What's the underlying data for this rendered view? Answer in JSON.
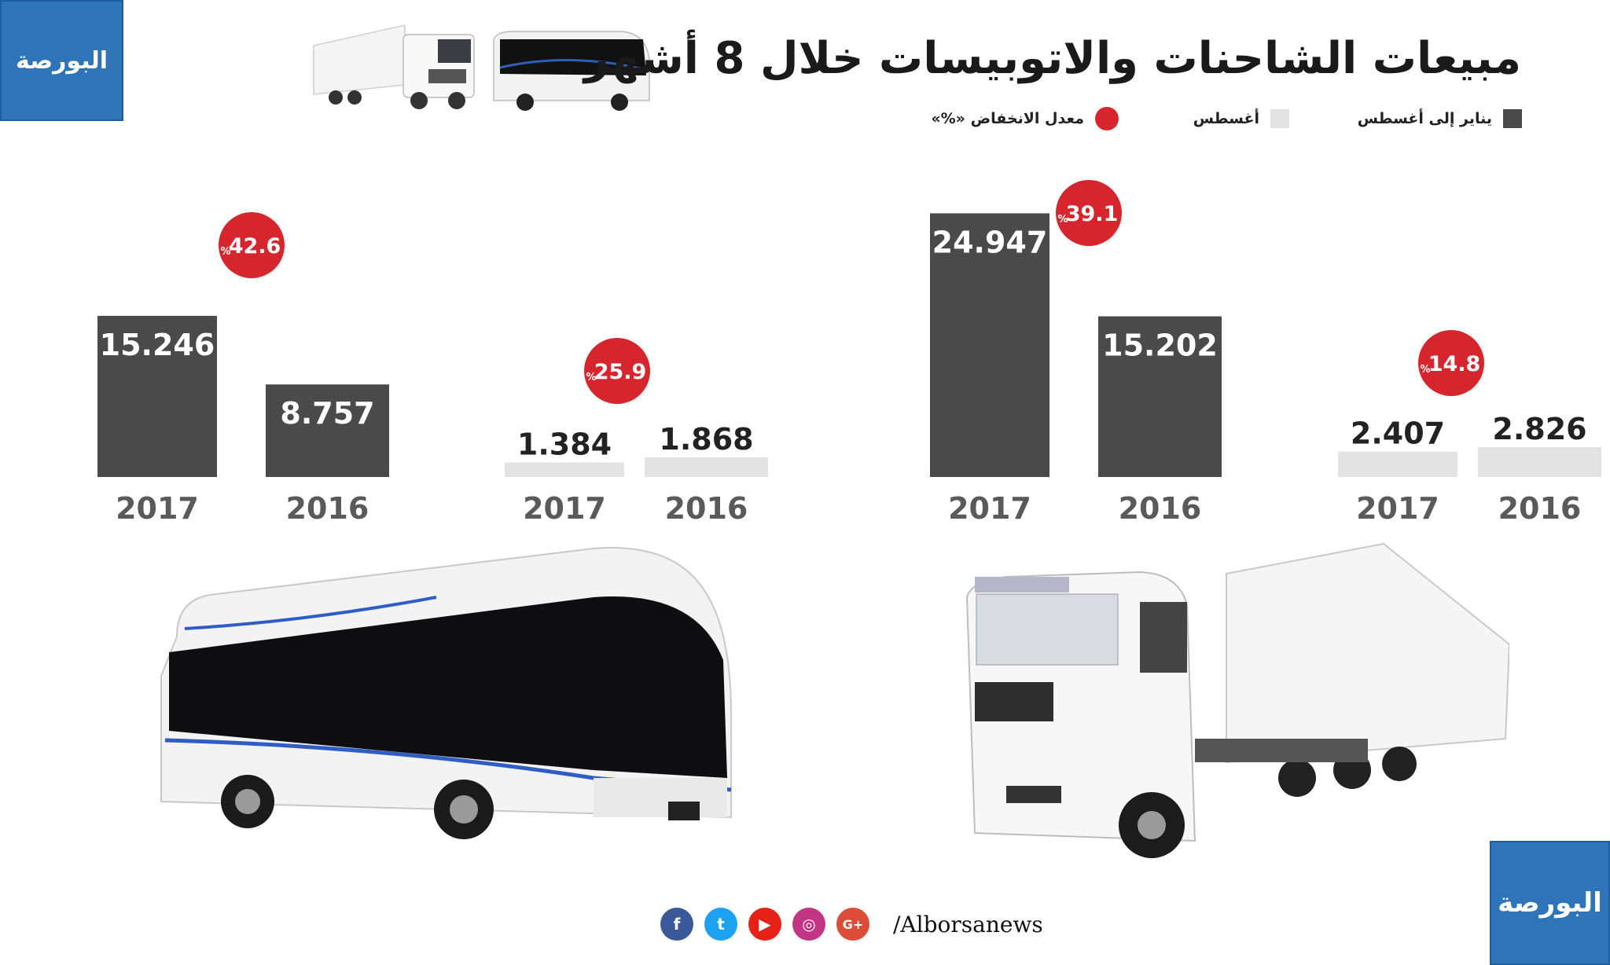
{
  "header": {
    "title": "مبيعات الشاحنات والاتوبيسات خلال 8 أشهر",
    "logo_text": "البورصة"
  },
  "legend": [
    {
      "label": "يناير إلى أغسطس",
      "color": "#4a4a4a",
      "shape": "square"
    },
    {
      "label": "أغسطس",
      "color": "#e3e3e3",
      "shape": "square"
    },
    {
      "label": "معدل الانخفاض «%»",
      "color": "#d7252e",
      "shape": "circle"
    }
  ],
  "colors": {
    "dark_bar": "#4a4a4a",
    "light_bar": "#e3e3e3",
    "badge": "#d7252e",
    "year_text": "#5a5a5a",
    "brand": "#2f74b8"
  },
  "chart_data": [
    {
      "type": "bar",
      "subject": "bus",
      "groups": [
        {
          "series": "يناير إلى أغسطس",
          "categories": [
            "2017",
            "2016"
          ],
          "values": [
            15.246,
            8.757
          ],
          "labels": [
            "15.246",
            "8.757"
          ],
          "change_badge": "42.6",
          "percent_sign": "%"
        },
        {
          "series": "أغسطس",
          "categories": [
            "2017",
            "2016"
          ],
          "values": [
            1.384,
            1.868
          ],
          "labels": [
            "1.384",
            "1.868"
          ],
          "change_badge": "25.9",
          "percent_sign": "%"
        }
      ]
    },
    {
      "type": "bar",
      "subject": "truck",
      "groups": [
        {
          "series": "يناير إلى أغسطس",
          "categories": [
            "2017",
            "2016"
          ],
          "values": [
            24.947,
            15.202
          ],
          "labels": [
            "24.947",
            "15.202"
          ],
          "change_badge": "39.1",
          "percent_sign": "%"
        },
        {
          "series": "أغسطس",
          "categories": [
            "2017",
            "2016"
          ],
          "values": [
            2.407,
            2.826
          ],
          "labels": [
            "2.407",
            "2.826"
          ],
          "change_badge": "14.8",
          "percent_sign": "%"
        }
      ]
    }
  ],
  "footer": {
    "handle": "/Alborsanews",
    "social": [
      {
        "icon": "facebook-icon",
        "glyph": "f",
        "color": "#3b5998"
      },
      {
        "icon": "twitter-icon",
        "glyph": "t",
        "color": "#1da1f2"
      },
      {
        "icon": "youtube-icon",
        "glyph": "▶",
        "color": "#e62117"
      },
      {
        "icon": "instagram-icon",
        "glyph": "◎",
        "color": "#c13584"
      },
      {
        "icon": "google-plus-icon",
        "glyph": "G+",
        "color": "#dd4b39"
      }
    ]
  }
}
